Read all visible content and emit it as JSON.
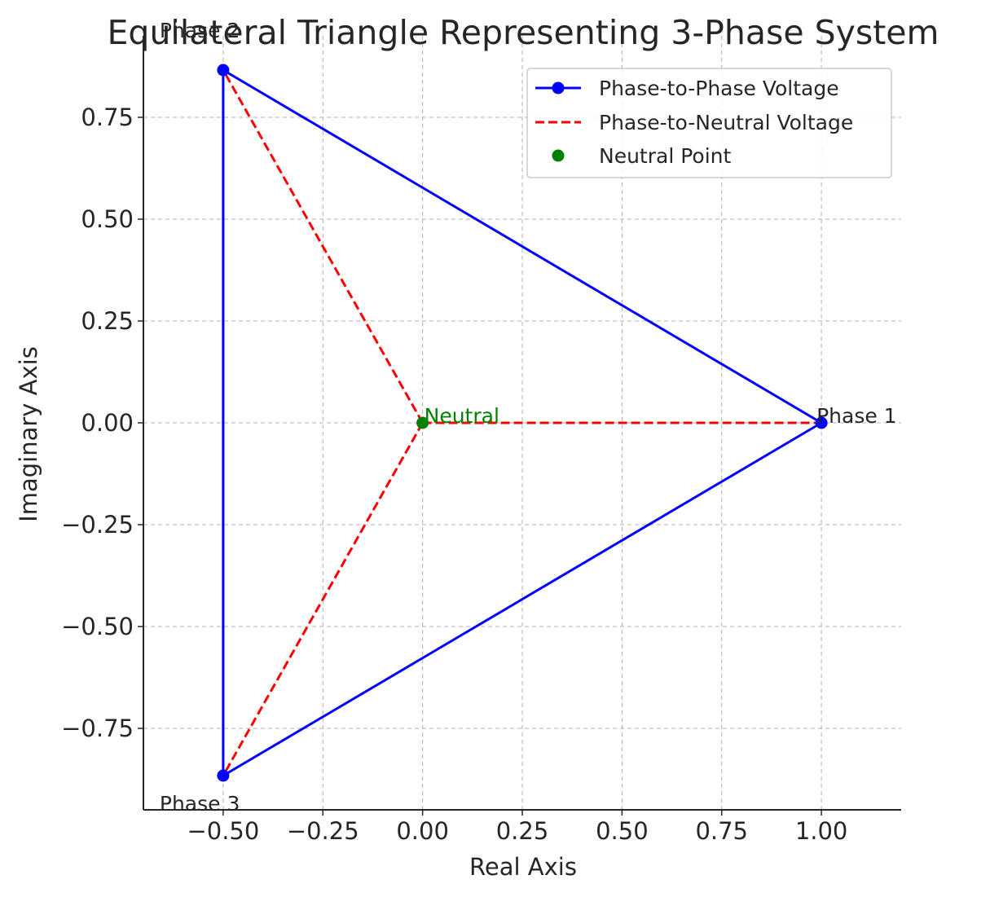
{
  "chart_data": {
    "type": "line",
    "title": "Equilateral Triangle Representing 3-Phase System",
    "xlabel": "Real Axis",
    "ylabel": "Imaginary Axis",
    "xlim": [
      -0.7,
      1.2
    ],
    "ylim": [
      -0.95,
      0.95
    ],
    "xticks": [
      -0.5,
      -0.25,
      0.0,
      0.25,
      0.5,
      0.75,
      1.0
    ],
    "xtick_labels": [
      "−0.50",
      "−0.25",
      "0.00",
      "0.25",
      "0.50",
      "0.75",
      "1.00"
    ],
    "yticks": [
      -0.75,
      -0.5,
      -0.25,
      0.0,
      0.25,
      0.5,
      0.75
    ],
    "ytick_labels": [
      "−0.75",
      "−0.50",
      "−0.25",
      "0.00",
      "0.25",
      "0.50",
      "0.75"
    ],
    "grid": true,
    "legend_position": "upper-right",
    "series": [
      {
        "name": "Phase-to-Phase Voltage",
        "color": "#0000ff",
        "style": "solid-with-markers",
        "points": [
          [
            1.0,
            0.0
          ],
          [
            -0.5,
            0.866
          ],
          [
            -0.5,
            -0.866
          ],
          [
            1.0,
            0.0
          ]
        ]
      },
      {
        "name": "Phase-to-Neutral Voltage",
        "color": "#ff0000",
        "style": "dashed",
        "segments": [
          [
            [
              0.0,
              0.0
            ],
            [
              1.0,
              0.0
            ]
          ],
          [
            [
              0.0,
              0.0
            ],
            [
              -0.5,
              0.866
            ]
          ],
          [
            [
              0.0,
              0.0
            ],
            [
              -0.5,
              -0.866
            ]
          ]
        ]
      },
      {
        "name": "Neutral Point",
        "color": "#008000",
        "style": "marker",
        "points": [
          [
            0.0,
            0.0
          ]
        ]
      }
    ],
    "annotations": [
      {
        "text": "Phase 1",
        "x": 1.0,
        "y": 0.0,
        "color": "#262626"
      },
      {
        "text": "Phase 2",
        "x": -0.5,
        "y": 0.866,
        "color": "#262626"
      },
      {
        "text": "Phase 3",
        "x": -0.5,
        "y": -0.866,
        "color": "#262626"
      },
      {
        "text": "Neutral",
        "x": 0.0,
        "y": 0.0,
        "color": "#008000"
      }
    ]
  }
}
